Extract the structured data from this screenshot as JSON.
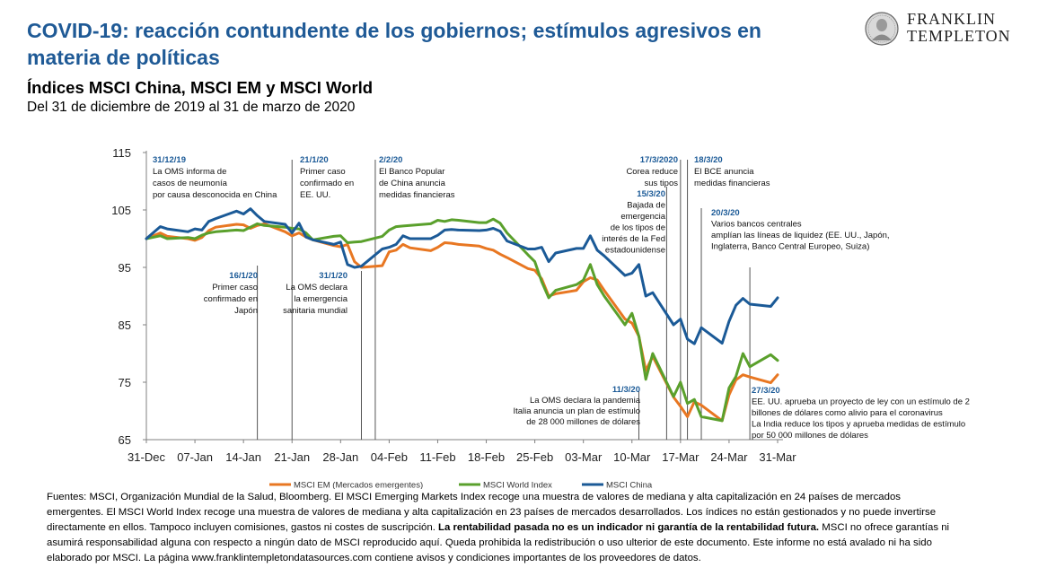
{
  "header": {
    "title": "COVID-19: reacción contundente de los gobiernos; estímulos agresivos en materia de políticas",
    "subtitle": "Índices MSCI China, MSCI EM y MSCI World",
    "date_range": "Del 31 de diciembre de 2019 al 31 de marzo de 2020"
  },
  "logo": {
    "line1": "FRANKLIN",
    "line2": "TEMPLETON"
  },
  "chart_data": {
    "type": "line",
    "title": "",
    "xlabel": "",
    "ylabel": "",
    "ylim": [
      65,
      115
    ],
    "yticks": [
      "115",
      "105",
      "95",
      "85",
      "75",
      "65"
    ],
    "x_range": [
      "31-Dec",
      "31-Mar"
    ],
    "xticks": [
      "31-Dec",
      "07-Jan",
      "14-Jan",
      "21-Jan",
      "28-Jan",
      "04-Feb",
      "11-Feb",
      "18-Feb",
      "25-Feb",
      "03-Mar",
      "10-Mar",
      "17-Mar",
      "24-Mar",
      "31-Mar"
    ],
    "grid": false,
    "legend_position": "bottom",
    "colors": {
      "em": "#e87722",
      "world": "#5aa02c",
      "china": "#1b5a97",
      "annotation_date": "#1b5a97",
      "vline": "#555555"
    },
    "series": [
      {
        "name": "MSCI EM (Mercados emergentes)",
        "x": [
          "31-Dec",
          "02-Jan",
          "03-Jan",
          "06-Jan",
          "07-Jan",
          "08-Jan",
          "09-Jan",
          "10-Jan",
          "13-Jan",
          "14-Jan",
          "15-Jan",
          "16-Jan",
          "17-Jan",
          "20-Jan",
          "21-Jan",
          "22-Jan",
          "23-Jan",
          "24-Jan",
          "27-Jan",
          "28-Jan",
          "29-Jan",
          "30-Jan",
          "31-Jan",
          "03-Feb",
          "04-Feb",
          "05-Feb",
          "06-Feb",
          "07-Feb",
          "10-Feb",
          "11-Feb",
          "12-Feb",
          "13-Feb",
          "14-Feb",
          "17-Feb",
          "18-Feb",
          "19-Feb",
          "20-Feb",
          "21-Feb",
          "24-Feb",
          "25-Feb",
          "26-Feb",
          "27-Feb",
          "28-Feb",
          "02-Mar",
          "03-Mar",
          "04-Mar",
          "05-Mar",
          "06-Mar",
          "09-Mar",
          "10-Mar",
          "11-Mar",
          "12-Mar",
          "13-Mar",
          "16-Mar",
          "17-Mar",
          "18-Mar",
          "19-Mar",
          "20-Mar",
          "23-Mar",
          "24-Mar",
          "25-Mar",
          "26-Mar",
          "27-Mar",
          "30-Mar",
          "31-Mar"
        ],
        "values": [
          100.0,
          101.0,
          100.4,
          100.0,
          99.7,
          100.2,
          101.4,
          102.0,
          102.5,
          102.4,
          101.8,
          102.3,
          102.6,
          101.2,
          100.5,
          101.0,
          100.3,
          99.8,
          98.8,
          98.6,
          99.0,
          96.0,
          95.0,
          95.3,
          97.7,
          98.0,
          99.0,
          98.4,
          97.9,
          98.5,
          99.3,
          99.2,
          99.0,
          98.7,
          98.3,
          98.0,
          97.3,
          96.7,
          94.8,
          94.5,
          93.0,
          90.0,
          90.4,
          91.0,
          92.5,
          93.2,
          92.8,
          91.0,
          86.0,
          85.3,
          83.0,
          77.0,
          79.5,
          72.4,
          70.8,
          69.0,
          71.6,
          71.0,
          68.3,
          72.8,
          75.4,
          76.3,
          75.9,
          74.9,
          76.3
        ]
      },
      {
        "name": "MSCI World Index",
        "x": [
          "31-Dec",
          "02-Jan",
          "03-Jan",
          "06-Jan",
          "07-Jan",
          "08-Jan",
          "09-Jan",
          "10-Jan",
          "13-Jan",
          "14-Jan",
          "15-Jan",
          "16-Jan",
          "17-Jan",
          "20-Jan",
          "21-Jan",
          "22-Jan",
          "23-Jan",
          "24-Jan",
          "27-Jan",
          "28-Jan",
          "29-Jan",
          "30-Jan",
          "31-Jan",
          "03-Feb",
          "04-Feb",
          "05-Feb",
          "06-Feb",
          "07-Feb",
          "10-Feb",
          "11-Feb",
          "12-Feb",
          "13-Feb",
          "14-Feb",
          "17-Feb",
          "18-Feb",
          "19-Feb",
          "20-Feb",
          "21-Feb",
          "24-Feb",
          "25-Feb",
          "26-Feb",
          "27-Feb",
          "28-Feb",
          "02-Mar",
          "03-Mar",
          "04-Mar",
          "05-Mar",
          "06-Mar",
          "09-Mar",
          "10-Mar",
          "11-Mar",
          "12-Mar",
          "13-Mar",
          "16-Mar",
          "17-Mar",
          "18-Mar",
          "19-Mar",
          "20-Mar",
          "23-Mar",
          "24-Mar",
          "25-Mar",
          "26-Mar",
          "27-Mar",
          "30-Mar",
          "31-Mar"
        ],
        "values": [
          100.0,
          100.5,
          100.0,
          100.2,
          100.0,
          100.6,
          101.0,
          101.2,
          101.5,
          101.4,
          102.0,
          102.6,
          102.3,
          102.0,
          101.8,
          101.7,
          101.0,
          99.8,
          100.4,
          100.5,
          99.3,
          99.4,
          99.5,
          100.4,
          101.5,
          102.1,
          102.2,
          102.3,
          102.6,
          103.2,
          103.0,
          103.3,
          103.2,
          102.8,
          102.8,
          103.4,
          102.7,
          101.0,
          97.2,
          96.0,
          92.5,
          89.7,
          91.0,
          92.0,
          92.8,
          95.5,
          92.0,
          90.0,
          85.0,
          87.0,
          83.0,
          75.5,
          80.0,
          72.5,
          75.0,
          71.3,
          72.0,
          69.0,
          68.3,
          74.0,
          76.0,
          80.0,
          77.7,
          79.8,
          78.8
        ]
      },
      {
        "name": "MSCI China",
        "x": [
          "31-Dec",
          "02-Jan",
          "03-Jan",
          "06-Jan",
          "07-Jan",
          "08-Jan",
          "09-Jan",
          "10-Jan",
          "13-Jan",
          "14-Jan",
          "15-Jan",
          "16-Jan",
          "17-Jan",
          "20-Jan",
          "21-Jan",
          "22-Jan",
          "23-Jan",
          "24-Jan",
          "27-Jan",
          "28-Jan",
          "29-Jan",
          "30-Jan",
          "31-Jan",
          "03-Feb",
          "04-Feb",
          "05-Feb",
          "06-Feb",
          "07-Feb",
          "10-Feb",
          "11-Feb",
          "12-Feb",
          "13-Feb",
          "14-Feb",
          "17-Feb",
          "18-Feb",
          "19-Feb",
          "20-Feb",
          "21-Feb",
          "24-Feb",
          "25-Feb",
          "26-Feb",
          "27-Feb",
          "28-Feb",
          "02-Mar",
          "03-Mar",
          "04-Mar",
          "05-Mar",
          "06-Mar",
          "09-Mar",
          "10-Mar",
          "11-Mar",
          "12-Mar",
          "13-Mar",
          "16-Mar",
          "17-Mar",
          "18-Mar",
          "19-Mar",
          "20-Mar",
          "23-Mar",
          "24-Mar",
          "25-Mar",
          "26-Mar",
          "27-Mar",
          "30-Mar",
          "31-Mar"
        ],
        "values": [
          100.0,
          102.1,
          101.7,
          101.2,
          101.7,
          101.5,
          103.0,
          103.5,
          104.8,
          104.3,
          105.2,
          104.0,
          103.0,
          102.5,
          101.0,
          102.7,
          100.3,
          99.8,
          99.0,
          99.4,
          95.5,
          95.0,
          95.2,
          98.2,
          98.5,
          99.0,
          100.5,
          100.0,
          100.0,
          100.6,
          101.5,
          101.6,
          101.5,
          101.4,
          101.5,
          101.8,
          101.3,
          99.6,
          98.2,
          98.2,
          98.5,
          96.0,
          97.5,
          98.3,
          98.3,
          100.5,
          98.0,
          97.0,
          93.6,
          94.0,
          95.5,
          90.0,
          90.6,
          85.0,
          86.0,
          82.5,
          81.7,
          84.5,
          81.8,
          85.6,
          88.4,
          89.6,
          88.6,
          88.2,
          89.7
        ]
      }
    ],
    "annotations": [
      {
        "date": "31/12/19",
        "text": [
          "La OMS informa de",
          "casos de neumonía",
          "por causa desconocida en China"
        ]
      },
      {
        "date": "16/1/20",
        "text": [
          "Primer caso",
          "confirmado en",
          "Japón"
        ]
      },
      {
        "date": "21/1/20",
        "text": [
          "Primer caso",
          "confirmado en",
          "EE. UU."
        ]
      },
      {
        "date": "31/1/20",
        "text": [
          "La OMS declara",
          "la emergencia",
          "sanitaria mundial"
        ]
      },
      {
        "date": "2/2/20",
        "text": [
          "El Banco Popular",
          "de China anuncia",
          "medidas financieras"
        ]
      },
      {
        "date": "11/3/20",
        "text": [
          "La OMS declara la pandemia",
          "Italia anuncia un plan de estímulo",
          "de 28 000 millones de dólares"
        ]
      },
      {
        "date": "15/3/20",
        "text": [
          "Bajada de",
          "emergencia",
          "de los tipos de",
          "interés de la Fed",
          "estadounidense"
        ]
      },
      {
        "date": "17/3/2020",
        "text": [
          "Corea reduce",
          "sus tipos"
        ]
      },
      {
        "date": "18/3/20",
        "text": [
          "El BCE anuncia",
          "medidas financieras"
        ]
      },
      {
        "date": "20/3/20",
        "text": [
          "Varios bancos centrales",
          "amplían las líneas de liquidez (EE. UU., Japón,",
          "Inglaterra, Banco Central Europeo, Suiza)"
        ]
      },
      {
        "date": "27/3/20",
        "text": [
          "EE. UU. aprueba un proyecto de ley con un estímulo de 2",
          "billones de dólares como alivio para el coronavirus",
          "La India reduce los tipos y aprueba medidas de estímulo",
          "por 50 000 millones de dólares"
        ]
      }
    ]
  },
  "footer": {
    "sources_part1": "Fuentes: MSCI, Organización Mundial de la Salud, Bloomberg. El MSCI Emerging Markets Index recoge una muestra de valores de mediana y alta capitalización en 24 países de mercados emergentes. El MSCI World Index recoge una muestra de valores de mediana y alta capitalización en 23 países de mercados desarrollados. Los índices no están gestionados y no puede invertirse directamente en ellos. Tampoco incluyen comisiones, gastos ni costes de suscripción. ",
    "sources_bold": "La rentabilidad pasada no es un indicador ni garantía de la rentabilidad futura.",
    "sources_part2": " MSCI no ofrece garantías ni asumirá responsabilidad alguna con respecto a ningún dato de MSCI reproducido aquí. Queda prohibida la redistribución o uso ulterior de este documento. Este informe no está avalado ni ha sido elaborado por MSCI. La página www.franklintempletondatasources.com contiene avisos y condiciones importantes de los proveedores de datos."
  }
}
